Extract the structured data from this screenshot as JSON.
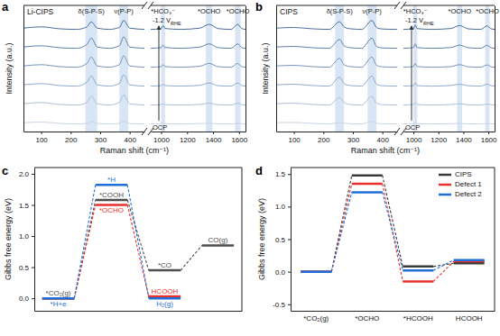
{
  "chart_data": [
    {
      "type": "line",
      "title": "a",
      "sample_label": "Li-CIPS",
      "x_label": "Raman shift (cm⁻¹)",
      "y_label": "Intensity (a.u.)",
      "tick_labels": "x",
      "x": [
        40,
        100,
        160,
        220,
        255,
        270,
        290,
        330,
        365,
        380,
        400,
        450
      ],
      "xlim": [
        40,
        450
      ],
      "xticks": [
        100,
        200,
        300,
        400
      ],
      "ylim": [
        0,
        100
      ],
      "series": [
        {
          "color": "#c9d4e4",
          "values": [
            7,
            7.5,
            6.5,
            6,
            6.5,
            8,
            6.5,
            6,
            6.5,
            8,
            6.3,
            6
          ]
        },
        {
          "color": "#adbfd9",
          "values": [
            22,
            23,
            21.5,
            21,
            23,
            28,
            22,
            21,
            23,
            29,
            22,
            21
          ]
        },
        {
          "color": "#91a9cc",
          "values": [
            37,
            38,
            36.5,
            36,
            39,
            44,
            37,
            36,
            38,
            45,
            37,
            36
          ]
        },
        {
          "color": "#7893bd",
          "values": [
            52,
            53,
            51.5,
            51,
            54,
            59,
            52,
            51,
            53,
            60,
            52,
            51
          ]
        },
        {
          "color": "#6180ad",
          "values": [
            67,
            68,
            66.5,
            66,
            69,
            74,
            67,
            66,
            68,
            75,
            67,
            66
          ]
        },
        {
          "color": "#4b6c9b",
          "values": [
            82,
            83,
            81.5,
            81,
            83,
            87,
            82,
            81,
            82.5,
            88,
            82,
            81
          ]
        }
      ],
      "annotations": [
        {
          "text": "δ(S-P-S)",
          "x": [
            250,
            290
          ]
        },
        {
          "text": "ν(P-P)",
          "x": [
            365,
            395
          ]
        }
      ]
    },
    {
      "type": "line",
      "tick_labels": "x",
      "x": [
        920,
        1000,
        1015,
        1030,
        1150,
        1300,
        1370,
        1440,
        1540,
        1590,
        1620,
        1650
      ],
      "xlim": [
        920,
        1650
      ],
      "xticks": [
        1000,
        1200,
        1400,
        1600
      ],
      "ylim": [
        0,
        100
      ],
      "potential_start": "OCP",
      "potential_end": "-1.2 V",
      "potential_end_sub": "RHE",
      "series": [
        {
          "color": "#c9d4e4",
          "values": [
            6,
            6.3,
            6.5,
            6.2,
            6,
            6.3,
            6.5,
            6.1,
            6,
            6.4,
            6.2,
            6
          ]
        },
        {
          "color": "#adbfd9",
          "values": [
            21,
            21.3,
            22,
            21.3,
            21,
            21.5,
            22.5,
            21.2,
            21,
            22.5,
            21.4,
            21
          ]
        },
        {
          "color": "#91a9cc",
          "values": [
            36,
            36.4,
            37.5,
            36.5,
            36,
            36.6,
            38.5,
            36.3,
            36,
            38.5,
            36.5,
            36
          ]
        },
        {
          "color": "#7893bd",
          "values": [
            51,
            51.4,
            53,
            51.5,
            51,
            51.8,
            54,
            51.4,
            51,
            54,
            51.5,
            51
          ]
        },
        {
          "color": "#6180ad",
          "values": [
            66,
            66.5,
            68.5,
            66.6,
            66,
            67,
            69.5,
            66.5,
            66,
            69.5,
            66.6,
            66
          ]
        },
        {
          "color": "#4b6c9b",
          "values": [
            81,
            81.5,
            84,
            81.7,
            81,
            82,
            85,
            81.6,
            81,
            85,
            81.7,
            81
          ]
        }
      ],
      "annotations": [
        {
          "text": "*HCO₃⁻",
          "x": [
            1000,
            1030
          ]
        },
        {
          "text": "*OCHO",
          "x": [
            1345,
            1395
          ]
        },
        {
          "text": "*OCHO",
          "x": [
            1570,
            1612
          ]
        }
      ]
    },
    {
      "type": "line",
      "title": "b",
      "sample_label": "CIPS",
      "x_label": "Raman shift (cm⁻¹)",
      "y_label": "Intensity (a.u.)",
      "tick_labels": "x",
      "x": [
        40,
        100,
        160,
        220,
        255,
        270,
        290,
        330,
        365,
        380,
        400,
        450
      ],
      "xlim": [
        40,
        450
      ],
      "xticks": [
        100,
        200,
        300,
        400
      ],
      "ylim": [
        0,
        100
      ],
      "series": [
        {
          "color": "#c9d4e4",
          "values": [
            7,
            7.2,
            6.5,
            6,
            7,
            6.5,
            6.2,
            6,
            8,
            6.5,
            6.2,
            6
          ]
        },
        {
          "color": "#adbfd9",
          "values": [
            22,
            22.5,
            21.5,
            21,
            27,
            23,
            21.5,
            21,
            28,
            22.5,
            21.3,
            21
          ]
        },
        {
          "color": "#91a9cc",
          "values": [
            37,
            37.5,
            36.5,
            36,
            43,
            38,
            36.5,
            36,
            44,
            37.5,
            36.3,
            36
          ]
        },
        {
          "color": "#7893bd",
          "values": [
            52,
            52.5,
            51.5,
            51,
            58,
            53,
            51.5,
            51,
            59,
            52.5,
            51.3,
            51
          ]
        },
        {
          "color": "#6180ad",
          "values": [
            67,
            67.5,
            66.5,
            66,
            73,
            68,
            66.5,
            66,
            74,
            67.5,
            66.3,
            66
          ]
        },
        {
          "color": "#4b6c9b",
          "values": [
            82,
            82.5,
            81.5,
            81,
            87,
            83,
            81.5,
            81,
            88,
            82.5,
            81.3,
            81
          ]
        }
      ],
      "annotations": [
        {
          "text": "δ(S-P-S)",
          "x": [
            240,
            270
          ]
        },
        {
          "text": "ν(P-P)",
          "x": [
            350,
            380
          ]
        }
      ]
    },
    {
      "type": "line",
      "tick_labels": "x",
      "x": [
        920,
        1000,
        1015,
        1030,
        1150,
        1300,
        1370,
        1440,
        1540,
        1590,
        1620,
        1650
      ],
      "xlim": [
        920,
        1650
      ],
      "xticks": [
        1000,
        1200,
        1400,
        1600
      ],
      "ylim": [
        0,
        100
      ],
      "potential_start": "OCP",
      "potential_end": "-1.2 V",
      "potential_end_sub": "RHE",
      "series": [
        {
          "color": "#c9d4e4",
          "values": [
            6,
            6.3,
            6.8,
            6.2,
            6,
            6.2,
            6.4,
            6.1,
            6,
            6.3,
            6.2,
            6
          ]
        },
        {
          "color": "#adbfd9",
          "values": [
            21,
            21.4,
            23,
            21.4,
            21,
            21.4,
            22,
            21.2,
            21,
            21.8,
            21.3,
            21
          ]
        },
        {
          "color": "#91a9cc",
          "values": [
            36,
            36.4,
            38.5,
            36.4,
            36,
            36.5,
            37.5,
            36.3,
            36,
            37.5,
            36.4,
            36
          ]
        },
        {
          "color": "#7893bd",
          "values": [
            51,
            51.5,
            54,
            51.5,
            51,
            51.5,
            53,
            51.3,
            51,
            52.8,
            51.4,
            51
          ]
        },
        {
          "color": "#6180ad",
          "values": [
            66,
            66.5,
            69.5,
            66.5,
            66,
            66.6,
            68.5,
            66.4,
            66,
            68.3,
            66.5,
            66
          ]
        },
        {
          "color": "#4b6c9b",
          "values": [
            81,
            81.5,
            84.5,
            81.6,
            81,
            81.7,
            84,
            81.4,
            81,
            83.8,
            81.5,
            81
          ]
        }
      ],
      "annotations": [
        {
          "text": "*HCO₃⁻",
          "x": [
            1000,
            1030
          ]
        },
        {
          "text": "*OCHO",
          "x": [
            1350,
            1390
          ]
        },
        {
          "text": "*OCHO",
          "x": [
            1575,
            1610
          ]
        }
      ]
    },
    {
      "type": "energy",
      "title": "c",
      "y_label": "Gibbs free energy (eV)",
      "tick_labels": "y",
      "xlim": [
        -0.45,
        3.45
      ],
      "ylim": [
        -0.2,
        2.1
      ],
      "yticks": [
        {
          "value": 0,
          "label": "0.0"
        },
        0.5,
        {
          "value": 1,
          "label": "1.0"
        },
        1.5,
        {
          "value": 2,
          "label": "2.0"
        }
      ],
      "series": [
        {
          "color": "#4d4d4d",
          "x": [
            0,
            1,
            2,
            3
          ],
          "values": [
            0,
            1.58,
            0.45,
            0.85
          ],
          "point_labels": [
            "*CO₂(g)",
            "*COOH",
            "*CO",
            "CO(g)"
          ]
        },
        {
          "color": "#e8302c",
          "x": [
            0,
            1,
            2
          ],
          "values": [
            0,
            1.5,
            0.03
          ],
          "point_labels": [
            null,
            "*OCHO",
            "HCOOH"
          ]
        },
        {
          "color": "#1e6fd9",
          "x": [
            0,
            1,
            2
          ],
          "values": [
            0,
            1.82,
            0
          ],
          "point_labels": [
            "*H+e",
            "*H",
            "H₂(g)"
          ]
        }
      ]
    },
    {
      "type": "energy",
      "title": "d",
      "y_label": "Gibbs free energy (eV)",
      "legend": "top-right",
      "categories": [
        "*CO₂(g)",
        "*OCHO",
        "*HCOOH",
        "HCOOH"
      ],
      "ylim": [
        -0.6,
        1.6
      ],
      "yticks": [
        -0.5,
        {
          "value": 0,
          "label": "0.0"
        },
        0.5,
        {
          "value": 1,
          "label": "1.0"
        },
        1.5
      ],
      "series": [
        {
          "name": "CIPS",
          "color": "#3a3a3a",
          "values": [
            0,
            1.48,
            0.08,
            0.13
          ]
        },
        {
          "name": "Defect 1",
          "color": "#e8302c",
          "values": [
            0,
            1.35,
            -0.15,
            0.16
          ]
        },
        {
          "name": "Defect 2",
          "color": "#1e6fd9",
          "values": [
            0,
            1.22,
            0.02,
            0.18
          ]
        }
      ]
    }
  ]
}
